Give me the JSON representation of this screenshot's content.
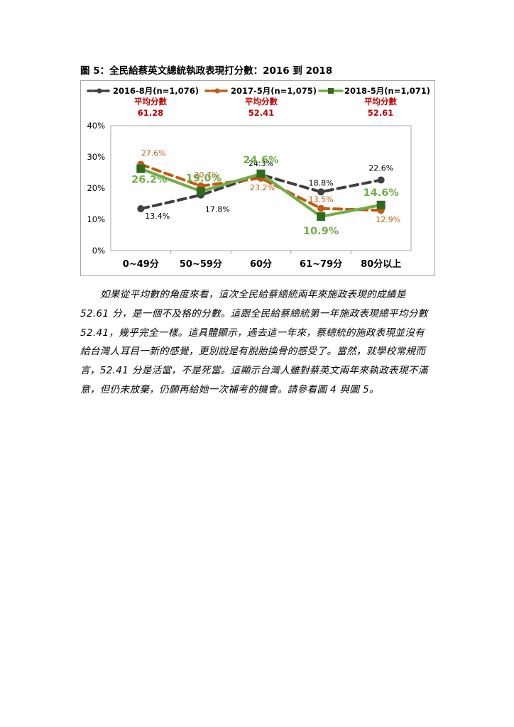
{
  "figure_title": "圖 5：全民給蔡英文總統執政表現打分數：2016 到 2018",
  "colors": {
    "s2016": "#404040",
    "s2017": "#c55a11",
    "s2018": "#70ad47",
    "avg": "#c00000"
  },
  "chart_data": {
    "type": "line",
    "categories": [
      "0~49分",
      "50~59分",
      "60分",
      "61~79分",
      "80分以上"
    ],
    "y_ticks": [
      "0%",
      "10%",
      "20%",
      "30%",
      "40%"
    ],
    "ylim": [
      0,
      40
    ],
    "grid": false,
    "legend_position": "top",
    "series": [
      {
        "name": "2016-8月(n=1,076)",
        "values": [
          13.4,
          17.8,
          24.3,
          18.8,
          22.6
        ],
        "labels": [
          "13.4%",
          "17.8%",
          "24.3%",
          "18.8%",
          "22.6%"
        ],
        "avg_label": "平均分數",
        "avg_value": "61.28",
        "style": "dashed",
        "color": "#404040"
      },
      {
        "name": "2017-5月(n=1,075)",
        "values": [
          27.6,
          20.7,
          23.2,
          13.5,
          12.9
        ],
        "labels": [
          "27.6%",
          "20.7%",
          "23.2%",
          "13.5%",
          "12.9%"
        ],
        "avg_label": "平均分數",
        "avg_value": "52.41",
        "style": "dashed",
        "color": "#c55a11"
      },
      {
        "name": "2018-5月(n=1,071)",
        "values": [
          26.2,
          19.0,
          24.6,
          10.9,
          14.6
        ],
        "labels": [
          "26.2%",
          "19.0%",
          "24.6%",
          "10.9%",
          "14.6%"
        ],
        "avg_label": "平均分數",
        "avg_value": "52.61",
        "style": "solid",
        "color": "#70ad47"
      }
    ]
  },
  "paragraph_lines": [
    "如果從平均數的角度來看，這次全民給蔡總統兩年來施政表現的成績是",
    "52.61 分，是一個不及格的分數。這跟全民給蔡總統第一年施政表現總平均分數",
    "52.41，幾乎完全一樣。這具體顯示，過去這一年來，蔡總統的施政表現並沒有",
    "給台灣人耳目一新的感覺，更別說是有脫胎換骨的感受了。當然，就學校常規而",
    "言，52.41 分是活當，不是死當。這顯示台灣人雖對蔡英文兩年來執政表現不滿",
    "意，但仍未放棄，仍願再給她一次補考的機會。請參看圖 4 與圖 5。"
  ]
}
